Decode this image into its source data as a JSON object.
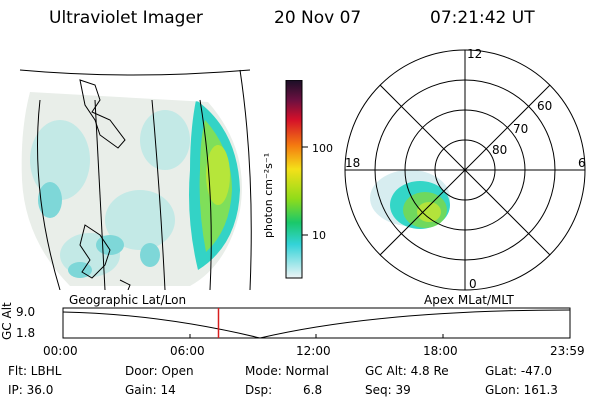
{
  "header": {
    "instrument": "Ultraviolet Imager",
    "date": "20 Nov 07",
    "time": "07:21:42 UT"
  },
  "colorbar": {
    "unit_label": "photon cm⁻²s⁻¹",
    "tick_100": "100",
    "tick_10": "10"
  },
  "left_panel": {
    "caption": "Geographic Lat/Lon"
  },
  "polar_plot": {
    "caption": "Apex MLat/MLT",
    "mlt_labels": {
      "top": "12",
      "left": "18",
      "right": "6",
      "bottom": "0"
    },
    "lat_labels": [
      "60",
      "70",
      "80"
    ]
  },
  "altitude_track": {
    "ylabel": "GC Alt",
    "y_ticks": [
      "9.0",
      "1.8"
    ],
    "x_ticks": [
      "00:00",
      "06:00",
      "12:00",
      "18:00",
      "23:59"
    ],
    "current_time_fraction": 0.3067,
    "marker_color": "#d81e1e"
  },
  "info": {
    "flt": "Flt: LBHL",
    "ip": "IP: 36.0",
    "door": "Door: Open",
    "gain": "Gain: 14",
    "mode": "Mode: Normal",
    "dsp_label": "Dsp:",
    "dsp_value": "6.8",
    "gcalt": "GC Alt: 4.8 Re",
    "seq": "Seq: 39",
    "glat": "GLat: -47.0",
    "glon": "GLon: 161.3"
  }
}
